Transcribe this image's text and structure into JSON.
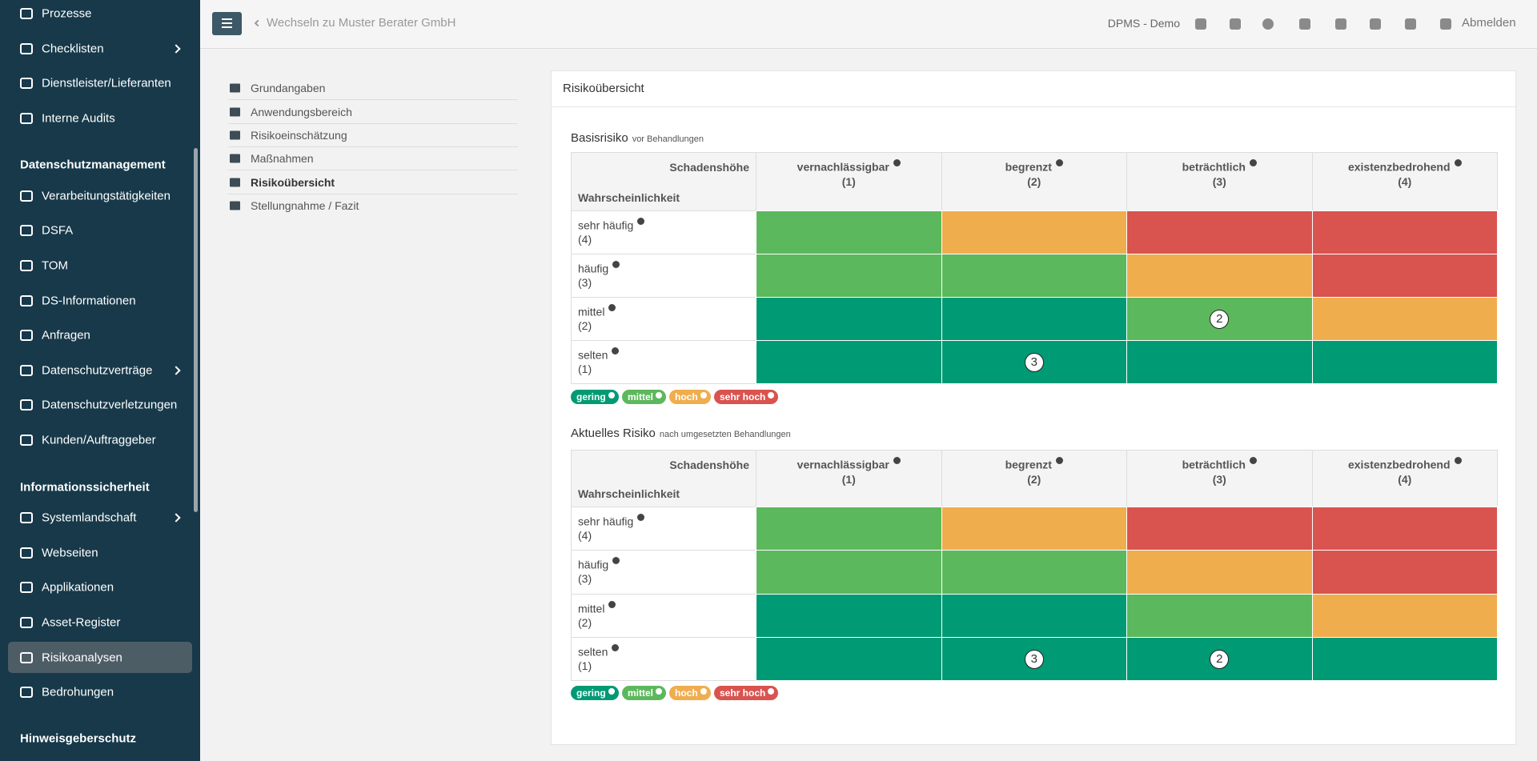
{
  "sidebar": {
    "top_items": [
      "Prozesse",
      "Checklisten",
      "Dienstleister/Lieferanten",
      "Interne Audits"
    ],
    "sections": [
      {
        "title": "Datenschutzmanagement",
        "items": [
          "Verarbeitungstätigkeiten",
          "DSFA",
          "TOM",
          "DS-Informationen",
          "Anfragen",
          "Datenschutzverträge",
          "Datenschutzverletzungen",
          "Kunden/Auftraggeber"
        ]
      },
      {
        "title": "Informationssicherheit",
        "items": [
          "Systemlandschaft",
          "Webseiten",
          "Applikationen",
          "Asset-Register",
          "Risikoanalysen",
          "Bedrohungen"
        ]
      },
      {
        "title": "Hinweisgeberschutz"
      }
    ]
  },
  "topbar": {
    "back_link": "Wechseln zu Muster Berater GmbH",
    "tenant": "DPMS - Demo",
    "logout": "Abmelden"
  },
  "subnav": [
    "Grundangaben",
    "Anwendungsbereich",
    "Risikoeinschätzung",
    "Maßnahmen",
    "Risikoübersicht",
    "Stellungnahme / Fazit"
  ],
  "panel": {
    "title": "Risikoübersicht",
    "matrices": [
      {
        "title": "Basisrisiko",
        "subtitle": "vor Behandlungen",
        "impact_label": "Schadenshöhe",
        "likelihood_label": "Wahrscheinlichkeit",
        "impacts": [
          {
            "name": "vernachlässigbar",
            "level": "(1)"
          },
          {
            "name": "begrenzt",
            "level": "(2)"
          },
          {
            "name": "beträchtlich",
            "level": "(3)"
          },
          {
            "name": "existenzbedrohend",
            "level": "(4)"
          }
        ],
        "likelihoods": [
          {
            "name": "sehr häufig",
            "level": "(4)"
          },
          {
            "name": "häufig",
            "level": "(3)"
          },
          {
            "name": "mittel",
            "level": "(2)"
          },
          {
            "name": "selten",
            "level": "(1)"
          }
        ],
        "counts": [
          [
            null,
            null,
            null,
            null
          ],
          [
            null,
            null,
            null,
            null
          ],
          [
            null,
            null,
            2,
            null
          ],
          [
            null,
            3,
            null,
            null
          ]
        ],
        "legend": [
          "gering",
          "mittel",
          "hoch",
          "sehr hoch"
        ]
      },
      {
        "title": "Aktuelles Risiko",
        "subtitle": "nach umgesetzten Behandlungen",
        "impact_label": "Schadenshöhe",
        "likelihood_label": "Wahrscheinlichkeit",
        "impacts": [
          {
            "name": "vernachlässigbar",
            "level": "(1)"
          },
          {
            "name": "begrenzt",
            "level": "(2)"
          },
          {
            "name": "beträchtlich",
            "level": "(3)"
          },
          {
            "name": "existenzbedrohend",
            "level": "(4)"
          }
        ],
        "likelihoods": [
          {
            "name": "sehr häufig",
            "level": "(4)"
          },
          {
            "name": "häufig",
            "level": "(3)"
          },
          {
            "name": "mittel",
            "level": "(2)"
          },
          {
            "name": "selten",
            "level": "(1)"
          }
        ],
        "counts": [
          [
            null,
            null,
            null,
            null
          ],
          [
            null,
            null,
            null,
            null
          ],
          [
            null,
            null,
            null,
            null
          ],
          [
            null,
            3,
            2,
            null
          ]
        ],
        "legend": [
          "gering",
          "mittel",
          "hoch",
          "sehr hoch"
        ]
      }
    ]
  }
}
